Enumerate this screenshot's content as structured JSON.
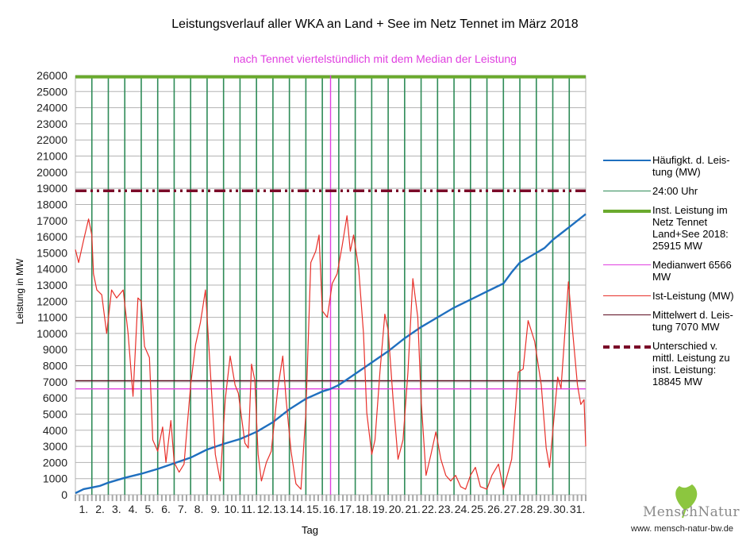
{
  "chart_data": {
    "type": "line",
    "title": "Leistungsverlauf aller WKA an Land + See im Netz Tennet im März 2018",
    "subtitle": "nach Tennet viertelstündlich mit dem Median der Leistung",
    "xlabel": "Tag",
    "ylabel": "Leistung in MW",
    "xlim": [
      0,
      31
    ],
    "ylim": [
      0,
      26000
    ],
    "grid": true,
    "legend_position": "right",
    "y_ticks": [
      "0",
      "1000",
      "2000",
      "3000",
      "4000",
      "5000",
      "6000",
      "7000",
      "8000",
      "9000",
      "10000",
      "11000",
      "12000",
      "13000",
      "14000",
      "15000",
      "16000",
      "17000",
      "18000",
      "19000",
      "20000",
      "21000",
      "22000",
      "23000",
      "24000",
      "25000",
      "26000"
    ],
    "x_tick_labels": [
      "1.",
      "2.",
      "3.",
      "4.",
      "5.",
      "6.",
      "7.",
      "8.",
      "9.",
      "10.",
      "11.",
      "12.",
      "13.",
      "14.",
      "15.",
      "16.",
      "17.",
      "18.",
      "19.",
      "20.",
      "21.",
      "22.",
      "23.",
      "24.",
      "25.",
      "26.",
      "27.",
      "28.",
      "29.",
      "30.",
      "31."
    ],
    "series": [
      {
        "name": "Häufigkt. d. Leis-tung (MW)",
        "legend_lines": [
          "Häufigkt. d. Leis-",
          "tung (MW)"
        ],
        "color": "#1f6fbf",
        "kind": "line",
        "x": [
          0,
          0.5,
          1,
          1.5,
          2,
          3,
          4,
          5,
          6,
          7,
          8,
          9,
          10,
          11,
          12,
          13,
          14,
          15,
          15.5,
          16,
          17,
          18,
          19,
          20,
          21,
          22,
          23,
          24,
          25,
          25.5,
          26,
          26.5,
          27,
          27.5,
          28,
          28.5,
          29,
          29.5,
          30,
          30.5,
          31
        ],
        "values": [
          100,
          350,
          450,
          550,
          750,
          1050,
          1300,
          1600,
          1950,
          2300,
          2800,
          3150,
          3450,
          3900,
          4500,
          5300,
          5950,
          6400,
          6566,
          6800,
          7500,
          8200,
          8900,
          9700,
          10400,
          11000,
          11600,
          12100,
          12600,
          12850,
          13100,
          13800,
          14400,
          14700,
          15000,
          15300,
          15800,
          16200,
          16600,
          17000,
          17400
        ]
      },
      {
        "name": "24:00 Uhr",
        "legend_lines": [
          "24:00 Uhr"
        ],
        "color": "#2e8b57",
        "kind": "vertical-day-lines",
        "x": [
          1,
          2,
          3,
          4,
          5,
          6,
          7,
          8,
          9,
          10,
          11,
          12,
          13,
          14,
          15,
          16,
          17,
          18,
          19,
          20,
          21,
          22,
          23,
          24,
          25,
          26,
          27,
          28,
          29,
          30
        ]
      },
      {
        "name": "Inst. Leistung im Netz Tennet Land+See 2018: 25915 MW",
        "legend_lines": [
          "Inst. Leistung im",
          "Netz Tennet",
          "Land+See 2018:",
          "25915 MW"
        ],
        "color": "#6aaa2e",
        "kind": "hline",
        "value": 25915
      },
      {
        "name": "Medianwert 6566 MW",
        "legend_lines": [
          "Medianwert 6566",
          "MW"
        ],
        "color": "#e040e0",
        "kind": "hline",
        "value": 6566,
        "vertical_at_x": 15.5
      },
      {
        "name": "Ist-Leistung (MW)",
        "legend_lines": [
          "Ist-Leistung (MW)"
        ],
        "color": "#e8302a",
        "kind": "line",
        "x": [
          0,
          0.2,
          0.5,
          0.8,
          1.0,
          1.1,
          1.3,
          1.6,
          1.9,
          2.2,
          2.5,
          2.9,
          3.2,
          3.5,
          3.8,
          4.0,
          4.2,
          4.5,
          4.7,
          5.0,
          5.3,
          5.5,
          5.8,
          6.0,
          6.3,
          6.6,
          7.0,
          7.3,
          7.6,
          7.9,
          8.2,
          8.5,
          8.8,
          9.1,
          9.4,
          9.7,
          9.9,
          10.3,
          10.5,
          10.7,
          10.9,
          11.1,
          11.3,
          11.6,
          11.9,
          12.3,
          12.6,
          12.8,
          13.1,
          13.4,
          13.7,
          14.0,
          14.3,
          14.6,
          14.8,
          15.0,
          15.3,
          15.6,
          15.9,
          16.2,
          16.5,
          16.7,
          16.9,
          17.2,
          17.5,
          17.7,
          18.0,
          18.2,
          18.5,
          18.8,
          19.0,
          19.3,
          19.6,
          19.9,
          20.2,
          20.5,
          20.8,
          21.0,
          21.3,
          21.6,
          21.9,
          22.2,
          22.5,
          22.8,
          23.1,
          23.4,
          23.7,
          24.0,
          24.3,
          24.6,
          25.0,
          25.3,
          25.7,
          26.0,
          26.5,
          26.9,
          27.2,
          27.5,
          27.9,
          28.3,
          28.6,
          28.8,
          29.3,
          29.5,
          29.8,
          29.95,
          30.2,
          30.5,
          30.7,
          30.9,
          31
        ],
        "values": [
          15200,
          14400,
          15800,
          17100,
          16100,
          13700,
          12700,
          12400,
          10000,
          12700,
          12200,
          12700,
          10000,
          6100,
          12200,
          12000,
          9200,
          8500,
          3400,
          2700,
          4200,
          2000,
          4600,
          2000,
          1400,
          1900,
          6800,
          9300,
          10700,
          12700,
          7600,
          2500,
          850,
          5900,
          8600,
          6800,
          6300,
          3200,
          2900,
          8100,
          7100,
          2500,
          850,
          2000,
          2700,
          6600,
          8600,
          5900,
          2700,
          680,
          340,
          5100,
          14400,
          15100,
          16100,
          11400,
          11000,
          13100,
          13700,
          15400,
          17300,
          15100,
          16100,
          14100,
          10000,
          5100,
          2500,
          3400,
          7600,
          11200,
          10200,
          5900,
          2200,
          3400,
          7600,
          13400,
          11000,
          5900,
          1200,
          2500,
          3900,
          2200,
          1200,
          850,
          1200,
          500,
          340,
          1200,
          1700,
          500,
          340,
          1200,
          1900,
          340,
          2200,
          7600,
          7800,
          10800,
          9500,
          6800,
          2900,
          1700,
          7300,
          6600,
          11000,
          13200,
          10200,
          6800,
          5600,
          5900,
          3000
        ]
      },
      {
        "name": "Mittelwert d. Leis-tung 7070 MW",
        "legend_lines": [
          "Mittelwert d. Leis-",
          "tung 7070 MW"
        ],
        "color": "#5a0a1e",
        "kind": "hline",
        "value": 7070
      },
      {
        "name": "Unterschied v. mittl. Leistung zu inst. Leistung: 18845 MW",
        "legend_lines": [
          "Unterschied v.",
          "mittl. Leistung zu",
          "inst. Leistung:",
          "18845 MW"
        ],
        "color": "#7a0a28",
        "kind": "hline-dashdot",
        "value": 18845
      }
    ]
  },
  "logo": {
    "name": "MenschNatur",
    "url": "www. mensch-natur-bw.de"
  }
}
